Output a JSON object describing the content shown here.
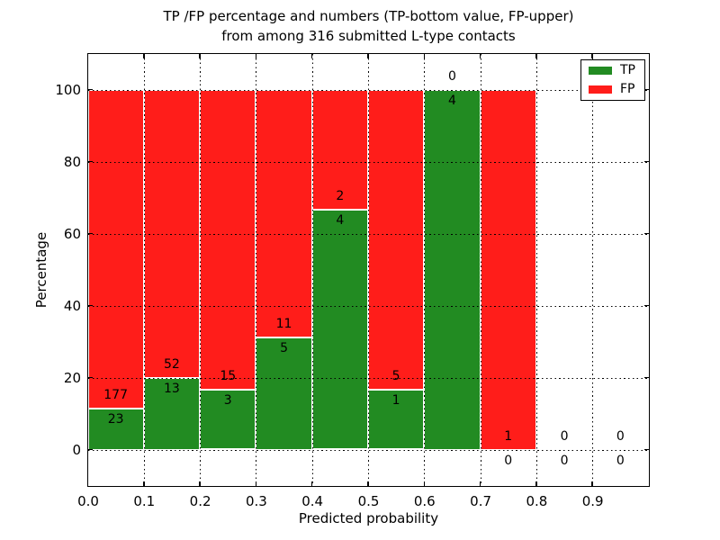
{
  "figure": {
    "title_line1": "TP /FP percentage and numbers (TP-bottom value, FP-upper)",
    "title_line2": "from among 316 submitted L-type contacts"
  },
  "chart_data": {
    "type": "bar",
    "stacked": true,
    "normalized_to_percent": true,
    "title": "TP /FP percentage and numbers (TP-bottom value, FP-upper) from among 316 submitted L-type contacts",
    "xlabel": "Predicted probability",
    "ylabel": "Percentage",
    "xlim": [
      0.0,
      1.0
    ],
    "ylim": [
      -10,
      110
    ],
    "grid": "dotted",
    "legend_position": "upper right",
    "bin_width": 0.1,
    "bin_starts": [
      0.0,
      0.1,
      0.2,
      0.3,
      0.4,
      0.5,
      0.6,
      0.7,
      0.8,
      0.9
    ],
    "xtick_labels": [
      "0.0",
      "0.1",
      "0.2",
      "0.3",
      "0.4",
      "0.5",
      "0.6",
      "0.7",
      "0.8",
      "0.9"
    ],
    "ytick_values": [
      0,
      20,
      40,
      60,
      80,
      100
    ],
    "ytick_labels": [
      "0",
      "20",
      "40",
      "60",
      "80",
      "100"
    ],
    "series": [
      {
        "name": "TP",
        "color": "#228b22",
        "counts": [
          23,
          13,
          3,
          5,
          4,
          1,
          4,
          0,
          0,
          0
        ]
      },
      {
        "name": "FP",
        "color": "#ff1d1a",
        "counts": [
          177,
          52,
          15,
          11,
          2,
          5,
          0,
          1,
          0,
          0
        ]
      }
    ],
    "tp_percent_per_bin": [
      11.5,
      20.0,
      16.67,
      31.25,
      66.67,
      16.67,
      100.0,
      0.0,
      null,
      null
    ],
    "total_submitted": 316
  },
  "legend": {
    "items": [
      {
        "label": "TP",
        "color": "#228b22"
      },
      {
        "label": "FP",
        "color": "#ff1d1a"
      }
    ]
  }
}
